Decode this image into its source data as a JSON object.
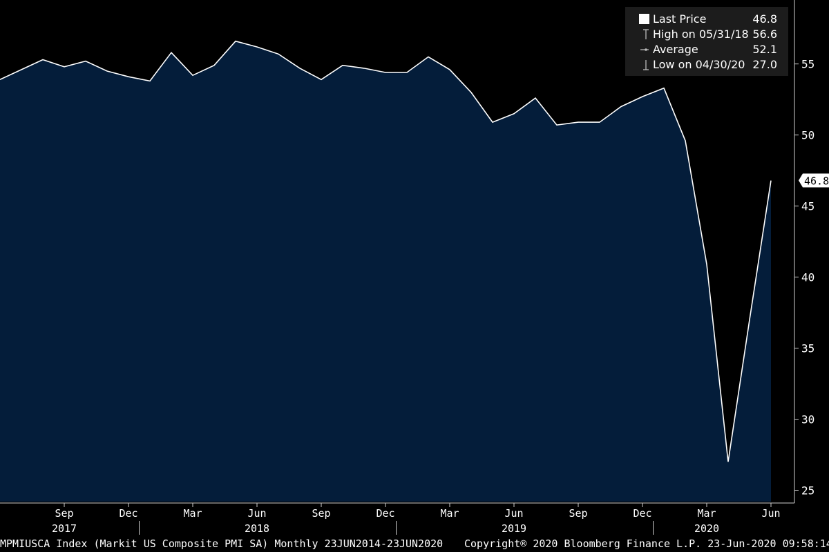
{
  "chart_data": {
    "type": "area",
    "ticker": "MPMIUSCA Index (Markit US Composite PMI SA) Monthly 23JUN2014-23JUN2020",
    "x_month_labels": [
      "Sep",
      "Dec",
      "Mar",
      "Jun",
      "Sep",
      "Dec",
      "Mar",
      "Jun",
      "Sep",
      "Dec",
      "Mar",
      "Jun"
    ],
    "x_year_labels": [
      "2017",
      "2018",
      "2019",
      "2020"
    ],
    "x": [
      "2017-06",
      "2017-07",
      "2017-08",
      "2017-09",
      "2017-10",
      "2017-11",
      "2017-12",
      "2018-01",
      "2018-02",
      "2018-03",
      "2018-04",
      "2018-05",
      "2018-06",
      "2018-07",
      "2018-08",
      "2018-09",
      "2018-10",
      "2018-11",
      "2018-12",
      "2019-01",
      "2019-02",
      "2019-03",
      "2019-04",
      "2019-05",
      "2019-06",
      "2019-07",
      "2019-08",
      "2019-09",
      "2019-10",
      "2019-11",
      "2019-12",
      "2020-01",
      "2020-02",
      "2020-03",
      "2020-04",
      "2020-05",
      "2020-06"
    ],
    "values": [
      53.9,
      54.6,
      55.3,
      54.8,
      55.2,
      54.5,
      54.1,
      53.8,
      55.8,
      54.2,
      54.9,
      56.6,
      56.2,
      55.7,
      54.7,
      53.9,
      54.9,
      54.7,
      54.4,
      54.4,
      55.5,
      54.6,
      53.0,
      50.9,
      51.5,
      52.6,
      50.7,
      50.9,
      50.9,
      52.0,
      52.7,
      53.3,
      49.6,
      40.9,
      27.0,
      37.0,
      46.8
    ],
    "yticks": [
      25,
      30,
      35,
      40,
      45,
      50,
      55
    ],
    "ylim": [
      24.2,
      59.5
    ],
    "last_label": "46.8",
    "colors": {
      "area": "#041d3a",
      "line": "#ffffff",
      "background": "#000000"
    }
  },
  "legend": [
    {
      "label": "Last Price",
      "value": "46.8",
      "icon": "square-swatch-icon"
    },
    {
      "label": "High on 05/31/18",
      "value": "56.6",
      "icon": "high-marker-icon"
    },
    {
      "label": "Average",
      "value": "52.1",
      "icon": "average-marker-icon"
    },
    {
      "label": "Low on 04/30/20",
      "value": "27.0",
      "icon": "low-marker-icon"
    }
  ],
  "footer": {
    "left": "MPMIUSCA Index (Markit US Composite PMI SA)  Monthly 23JUN2014-23JUN2020",
    "right": "Copyright® 2020 Bloomberg Finance L.P.  23-Jun-2020 09:58:14"
  }
}
